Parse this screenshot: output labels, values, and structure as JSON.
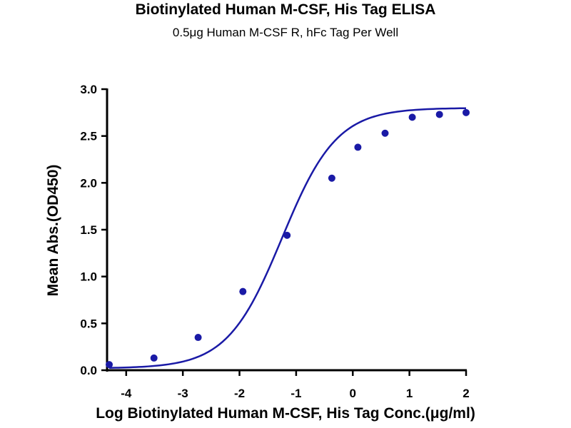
{
  "chart_data": {
    "type": "scatter",
    "title": "Biotinylated Human M-CSF, His Tag ELISA",
    "subtitle": "0.5μg Human M-CSF R, hFc Tag Per Well",
    "xlabel": "Log Biotinylated Human M-CSF, His Tag Conc.(μg/ml)",
    "ylabel": "Mean Abs.(OD450)",
    "xlim": [
      -4.3,
      2
    ],
    "ylim": [
      0,
      3.0
    ],
    "xticks": [
      -4,
      -3,
      -2,
      -1,
      0,
      1,
      2
    ],
    "xtick_labels": [
      "-4",
      "-3",
      "-2",
      "-1",
      "0",
      "1",
      "2"
    ],
    "yticks": [
      0,
      0.5,
      1.0,
      1.5,
      2.0,
      2.5,
      3.0
    ],
    "ytick_labels": [
      "0.0",
      "0.5",
      "1.0",
      "1.5",
      "2.0",
      "2.5",
      "3.0"
    ],
    "grid": false,
    "color": "#1a1aa6",
    "series": [
      {
        "x": [
          -4.3,
          -3.51,
          -2.73,
          -1.94,
          -1.16,
          -0.37,
          0.09,
          0.57,
          1.05,
          1.53,
          2.0
        ],
        "y": [
          0.06,
          0.13,
          0.35,
          0.84,
          1.44,
          2.05,
          2.38,
          2.53,
          2.7,
          2.73,
          2.75
        ]
      }
    ],
    "fit": {
      "model": "4PL",
      "bottom": 0.02,
      "top": 2.8,
      "logEC50": -1.25,
      "hill": 0.9
    }
  }
}
